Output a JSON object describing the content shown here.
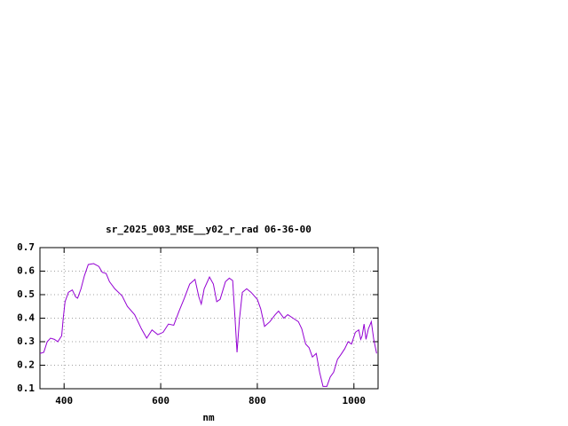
{
  "chart_data": {
    "type": "line",
    "title": "sr_2025_003_MSE__y02_r_rad 06-36-00",
    "x_label": "nm",
    "xlim": [
      350,
      1050
    ],
    "xticks": [
      400,
      600,
      800,
      1000
    ],
    "ylim": [
      0.1,
      0.7
    ],
    "yticks": [
      0.1,
      0.2,
      0.3,
      0.4,
      0.5,
      0.6,
      0.7
    ],
    "grid": true,
    "x": [
      350,
      358,
      365,
      372,
      380,
      387,
      395,
      398,
      402,
      409,
      417,
      424,
      428,
      435,
      442,
      450,
      461,
      472,
      479,
      487,
      494,
      505,
      520,
      531,
      546,
      560,
      571,
      582,
      594,
      605,
      616,
      627,
      638,
      649,
      660,
      671,
      679,
      684,
      690,
      701,
      709,
      716,
      723,
      734,
      742,
      749,
      754,
      758,
      763,
      769,
      778,
      787,
      800,
      807,
      815,
      826,
      837,
      844,
      855,
      863,
      874,
      885,
      892,
      900,
      907,
      914,
      922,
      929,
      936,
      944,
      951,
      958,
      966,
      973,
      981,
      988,
      995,
      1003,
      1010,
      1014,
      1017,
      1021,
      1025,
      1030,
      1036,
      1041,
      1047
    ],
    "series": [
      {
        "color": "#9400d3",
        "values": [
          0.25,
          0.255,
          0.3,
          0.315,
          0.31,
          0.3,
          0.325,
          0.395,
          0.47,
          0.51,
          0.52,
          0.49,
          0.485,
          0.525,
          0.58,
          0.628,
          0.632,
          0.62,
          0.595,
          0.59,
          0.555,
          0.525,
          0.495,
          0.45,
          0.415,
          0.355,
          0.315,
          0.35,
          0.33,
          0.34,
          0.375,
          0.37,
          0.43,
          0.485,
          0.545,
          0.565,
          0.49,
          0.46,
          0.525,
          0.575,
          0.545,
          0.47,
          0.48,
          0.555,
          0.57,
          0.56,
          0.395,
          0.255,
          0.395,
          0.51,
          0.525,
          0.51,
          0.48,
          0.44,
          0.365,
          0.385,
          0.415,
          0.43,
          0.4,
          0.415,
          0.4,
          0.385,
          0.355,
          0.29,
          0.275,
          0.235,
          0.25,
          0.17,
          0.11,
          0.11,
          0.15,
          0.17,
          0.225,
          0.245,
          0.27,
          0.3,
          0.29,
          0.34,
          0.35,
          0.31,
          0.325,
          0.375,
          0.31,
          0.355,
          0.385,
          0.31,
          0.25
        ]
      }
    ]
  }
}
